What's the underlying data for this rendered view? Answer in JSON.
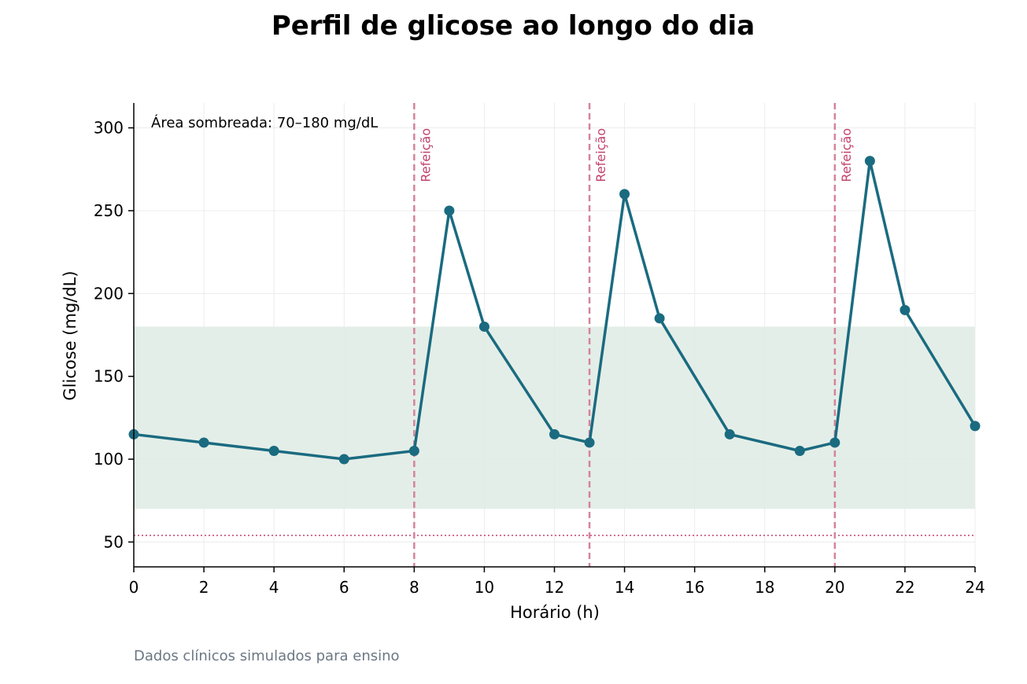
{
  "chart_data": {
    "type": "line",
    "title": "Perfil de glicose ao longo do dia",
    "xlabel": "Horário (h)",
    "ylabel": "Glicose (mg/dL)",
    "xlim": [
      0,
      24
    ],
    "ylim": [
      35,
      315
    ],
    "x_ticks": [
      0,
      2,
      4,
      6,
      8,
      10,
      12,
      14,
      16,
      18,
      20,
      22,
      24
    ],
    "y_ticks": [
      50,
      100,
      150,
      200,
      250,
      300
    ],
    "grid": true,
    "series": [
      {
        "x": [
          0,
          2,
          4,
          6,
          8,
          9,
          10,
          12,
          13,
          14,
          15,
          17,
          19,
          20,
          21,
          22,
          24
        ],
        "values": [
          115,
          110,
          105,
          100,
          105,
          250,
          180,
          115,
          110,
          260,
          185,
          115,
          105,
          110,
          280,
          190,
          120
        ]
      }
    ],
    "target_band": [
      70,
      180
    ],
    "hypo_line": 54,
    "meal_times": [
      8,
      13,
      20
    ],
    "meal_label": "Refeição",
    "annotation": "Área sombreada: 70–180 mg/dL",
    "footnote": "Dados clínicos simulados para ensino",
    "colors": {
      "line": "#1a6b80",
      "band": "#e1ece6",
      "meal_line": "#d4849a",
      "meal_text": "#c2426b",
      "hypo_line": "#c2426b",
      "grid": "#ececec",
      "axis": "#000000"
    }
  }
}
